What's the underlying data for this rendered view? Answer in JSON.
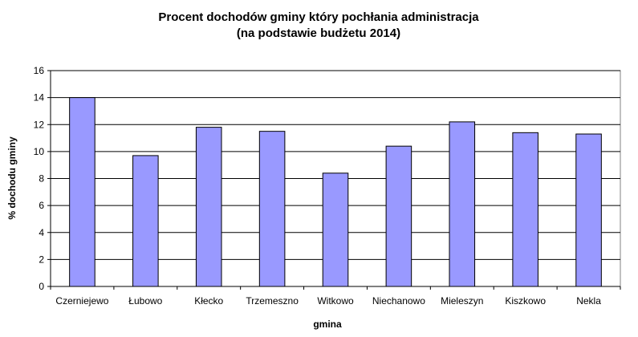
{
  "chart_data": {
    "type": "bar",
    "title": "Procent dochodów gminy który pochłania administracja",
    "subtitle": "(na podstawie budżetu 2014)",
    "xlabel": "gmina",
    "ylabel": "% dochodu gminy",
    "categories": [
      "Czerniejewo",
      "Łubowo",
      "Kłecko",
      "Trzemeszno",
      "Witkowo",
      "Niechanowo",
      "Mieleszyn",
      "Kiszkowo",
      "Nekla"
    ],
    "values": [
      14.0,
      9.7,
      11.8,
      11.5,
      8.4,
      10.4,
      12.2,
      11.4,
      11.3
    ],
    "ylim": [
      0,
      16
    ],
    "yticks": [
      "0",
      "2",
      "4",
      "6",
      "8",
      "10",
      "12",
      "14",
      "16"
    ],
    "grid": true,
    "legend": "none",
    "bar_color": "#9999ff",
    "bar_stroke": "#000000",
    "plot_background": "#ffffff"
  }
}
